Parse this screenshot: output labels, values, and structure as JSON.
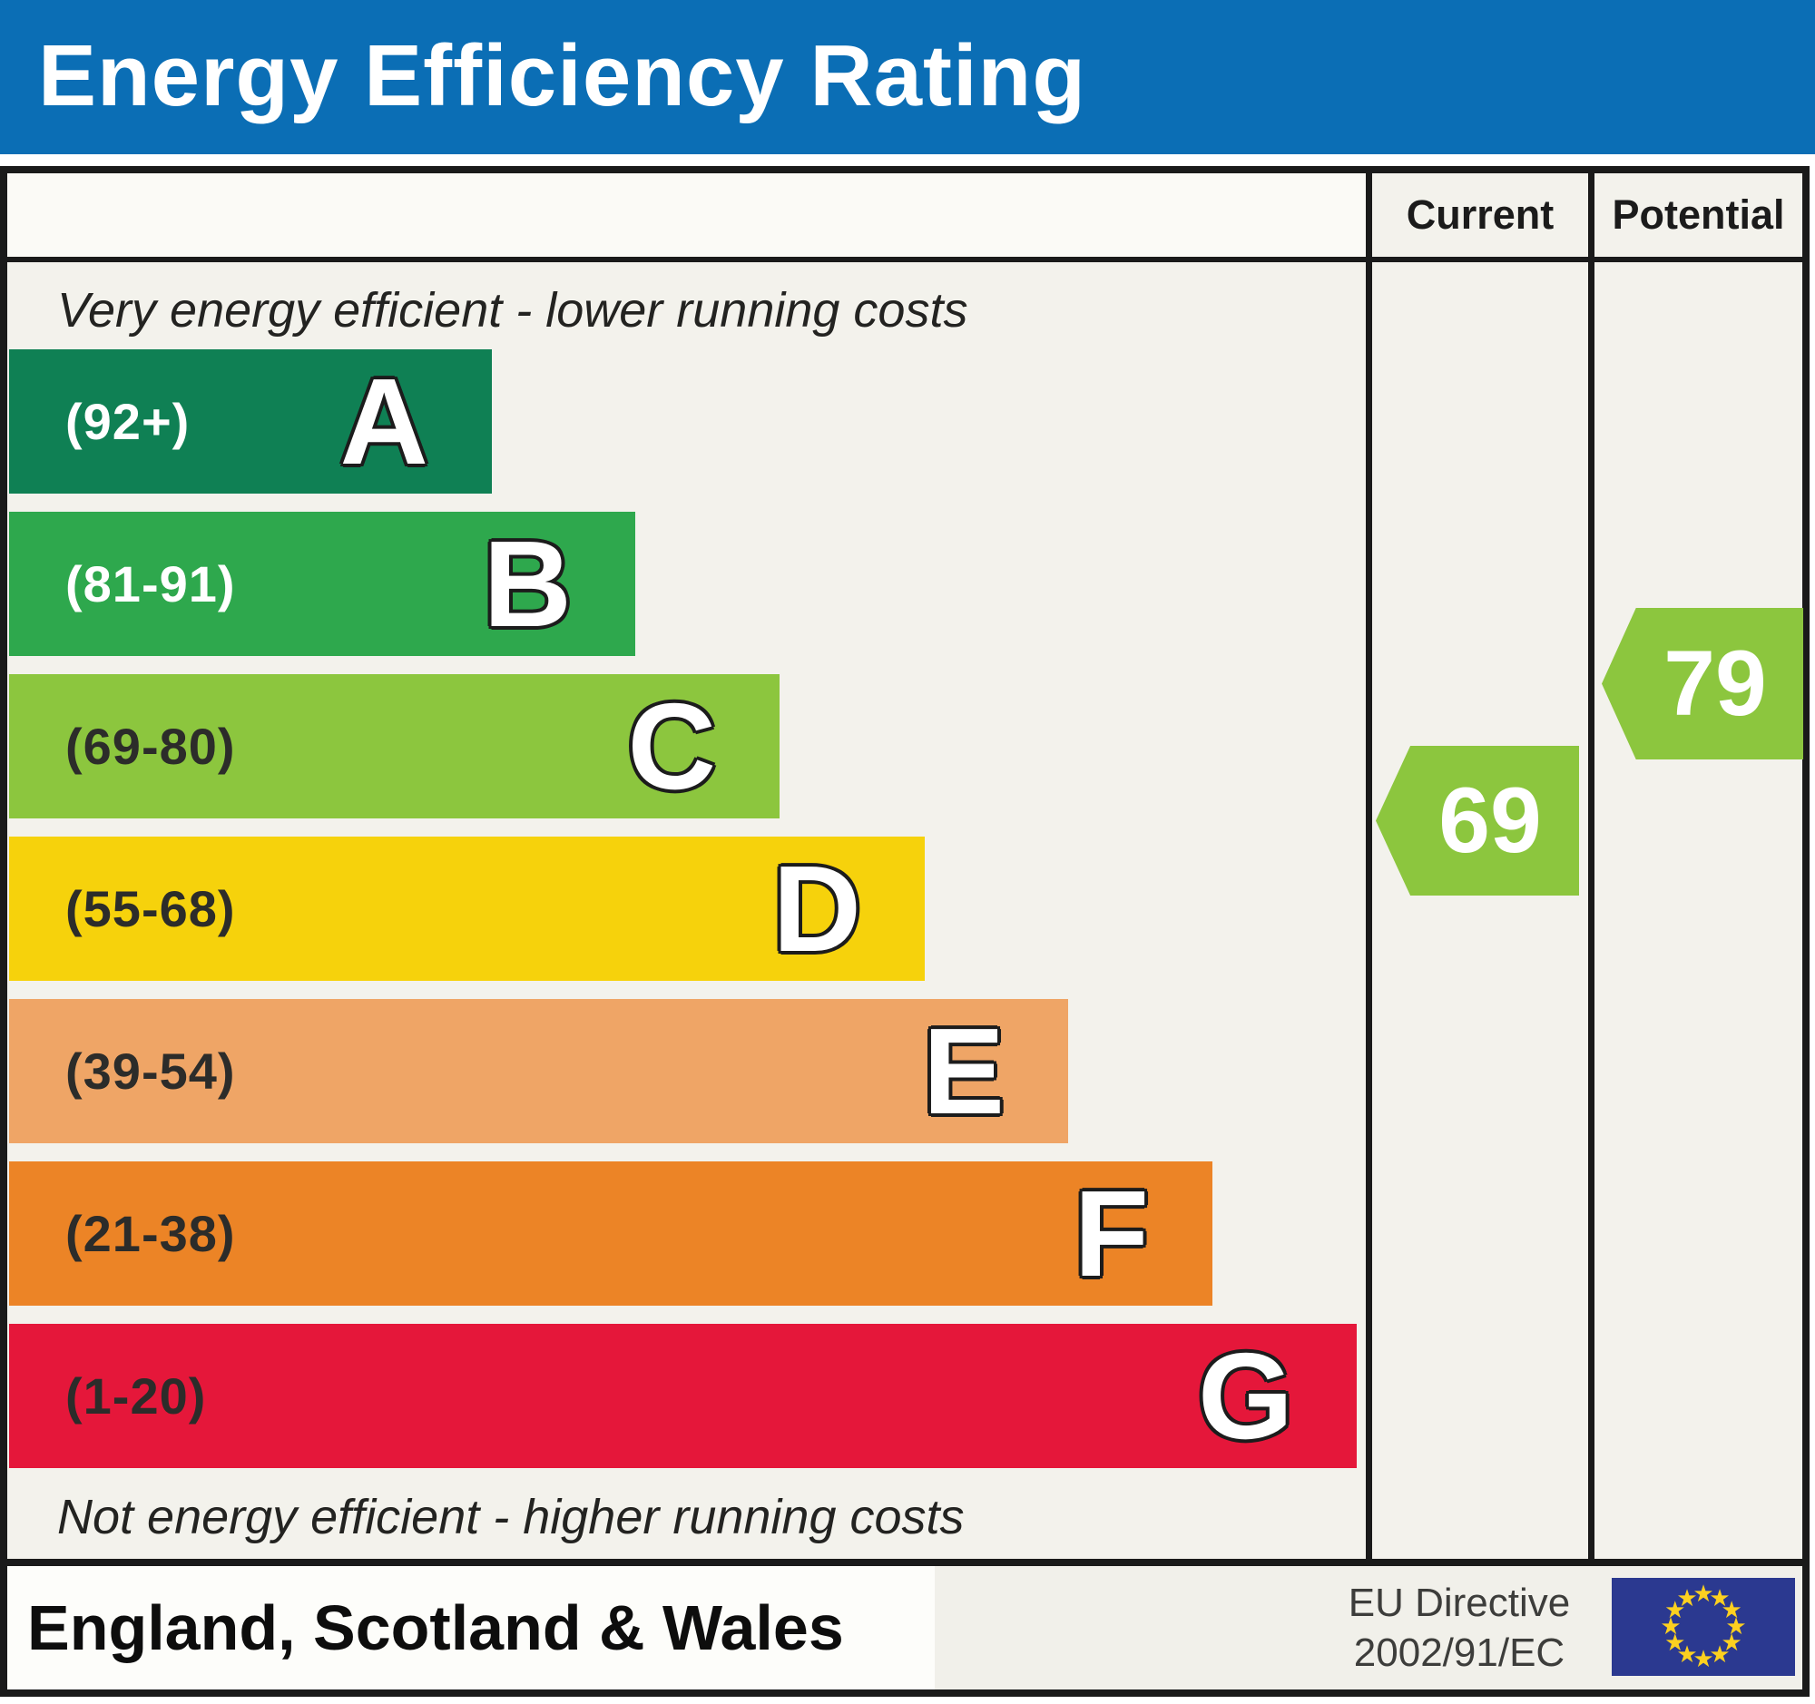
{
  "title": "Energy Efficiency Rating",
  "header": {
    "current": "Current",
    "potential": "Potential"
  },
  "notes": {
    "top": "Very energy efficient - lower running costs",
    "bottom": "Not energy efficient - higher running costs"
  },
  "bands": [
    {
      "letter": "A",
      "range_label": "(92+)",
      "color": "#0f8054",
      "label_color": "#ffffff"
    },
    {
      "letter": "B",
      "range_label": "(81-91)",
      "color": "#2ea84d",
      "label_color": "#ffffff"
    },
    {
      "letter": "C",
      "range_label": "(69-80)",
      "color": "#8cc63e",
      "label_color": "#2c2c2a"
    },
    {
      "letter": "D",
      "range_label": "(55-68)",
      "color": "#f6d20c",
      "label_color": "#2c2c2a"
    },
    {
      "letter": "E",
      "range_label": "(39-54)",
      "color": "#efa566",
      "label_color": "#2c2c2a"
    },
    {
      "letter": "F",
      "range_label": "(21-38)",
      "color": "#ec8426",
      "label_color": "#2c2c2a"
    },
    {
      "letter": "G",
      "range_label": "(1-20)",
      "color": "#e5173a",
      "label_color": "#2c2c2a"
    }
  ],
  "ratings": {
    "current": "69",
    "potential": "79"
  },
  "footer": {
    "region": "England, Scotland & Wales",
    "directive_line1": "EU Directive",
    "directive_line2": "2002/91/EC"
  },
  "colors": {
    "title_bg": "#0b6eb5",
    "marker": "#8cc63e",
    "flag_bg": "#2b3990",
    "flag_star": "#fcd020"
  },
  "chart_data": {
    "type": "bar",
    "title": "Energy Efficiency Rating",
    "categories": [
      "A",
      "B",
      "C",
      "D",
      "E",
      "F",
      "G"
    ],
    "band_ranges": [
      "92+",
      "81-91",
      "69-80",
      "55-68",
      "39-54",
      "21-38",
      "1-20"
    ],
    "band_colors": [
      "#0f8054",
      "#2ea84d",
      "#8cc63e",
      "#f6d20c",
      "#efa566",
      "#ec8426",
      "#e5173a"
    ],
    "bar_relative_lengths": [
      0.36,
      0.46,
      0.57,
      0.67,
      0.78,
      0.89,
      1.0
    ],
    "series": [
      {
        "name": "Current",
        "value": 69,
        "band": "C"
      },
      {
        "name": "Potential",
        "value": 79,
        "band": "C"
      }
    ],
    "top_annotation": "Very energy efficient - lower running costs",
    "bottom_annotation": "Not energy efficient - higher running costs",
    "footnote": "England, Scotland & Wales — EU Directive 2002/91/EC"
  }
}
